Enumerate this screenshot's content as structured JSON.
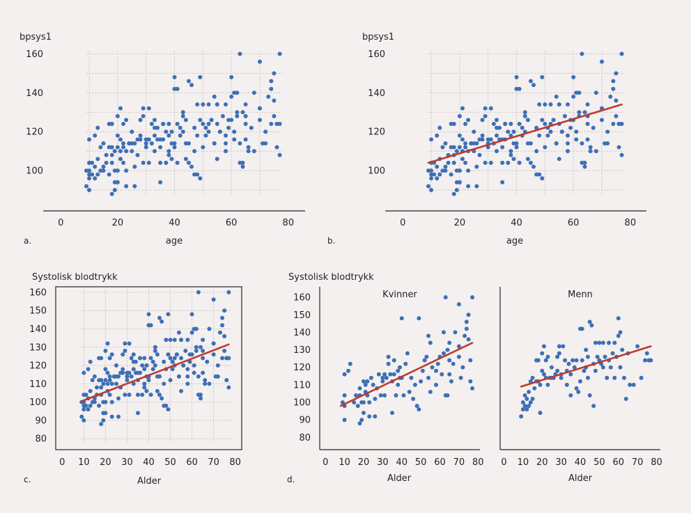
{
  "colors": {
    "background": "#f4f0ef",
    "point": "#3d6fb6",
    "line": "#c0392b",
    "grid": "#c8c4c4",
    "axis": "#222222"
  },
  "panels": {
    "a": {
      "letter": "a.",
      "ylabel": "bpsys1",
      "xlabel": "age"
    },
    "b": {
      "letter": "b.",
      "ylabel": "bpsys1",
      "xlabel": "age"
    },
    "c": {
      "letter": "c.",
      "ylabel": "Systolisk blodtrykk",
      "xlabel": "Alder"
    },
    "d": {
      "letter": "d.",
      "ylabel": "Systolisk blodtrykk",
      "xlabel": "Alder",
      "facet_women": "Kvinner",
      "facet_men": "Menn"
    }
  },
  "chart_data": [
    {
      "id": "a",
      "type": "scatter",
      "title": "",
      "xlabel": "age",
      "ylabel": "bpsys1",
      "xlim": [
        -3,
        82
      ],
      "ylim": [
        80,
        163
      ],
      "xticks": [
        0,
        20,
        40,
        60,
        80
      ],
      "yticks": [
        100,
        120,
        140,
        160
      ],
      "grid": true,
      "dataset": "all",
      "fit_line": null
    },
    {
      "id": "b",
      "type": "scatter",
      "title": "",
      "xlabel": "age",
      "ylabel": "bpsys1",
      "xlim": [
        -3,
        82
      ],
      "ylim": [
        80,
        163
      ],
      "xticks": [
        0,
        20,
        40,
        60,
        80
      ],
      "yticks": [
        100,
        120,
        140,
        160
      ],
      "grid": true,
      "dataset": "all",
      "fit_line": {
        "x": [
          9,
          77
        ],
        "y": [
          104,
          134
        ]
      }
    },
    {
      "id": "c",
      "type": "scatter",
      "title": "",
      "xlabel": "Alder",
      "ylabel": "Systolisk blodtrykk",
      "xlim": [
        -3,
        83
      ],
      "ylim": [
        74,
        163
      ],
      "xticks": [
        0,
        10,
        20,
        30,
        40,
        50,
        60,
        70,
        80
      ],
      "yticks": [
        80,
        90,
        100,
        110,
        120,
        130,
        140,
        150,
        160
      ],
      "grid": true,
      "dataset": "all",
      "fit_line": {
        "x": [
          9,
          77
        ],
        "y": [
          100.5,
          131.5
        ]
      }
    },
    {
      "id": "d-women",
      "type": "scatter",
      "title": "Kvinner",
      "xlabel": "Alder",
      "ylabel": "Systolisk blodtrykk",
      "xlim": [
        -3,
        81
      ],
      "ylim": [
        73,
        166
      ],
      "xticks": [
        0,
        10,
        20,
        30,
        40,
        50,
        60,
        70,
        80
      ],
      "yticks": [
        80,
        90,
        100,
        110,
        120,
        130,
        140,
        150,
        160
      ],
      "grid": false,
      "dataset": "women",
      "fit_line": {
        "x": [
          8,
          77
        ],
        "y": [
          98,
          134
        ]
      }
    },
    {
      "id": "d-men",
      "type": "scatter",
      "title": "Menn",
      "xlabel": "Alder",
      "ylabel": "",
      "xlim": [
        -2,
        82
      ],
      "ylim": [
        73,
        166
      ],
      "xticks": [
        0,
        10,
        20,
        30,
        40,
        50,
        60,
        70,
        80
      ],
      "yticks": [],
      "grid": false,
      "dataset": "men",
      "fit_line": {
        "x": [
          9,
          77
        ],
        "y": [
          109,
          132
        ]
      }
    }
  ],
  "points": {
    "women": [
      [
        9,
        100
      ],
      [
        10,
        90
      ],
      [
        10,
        98
      ],
      [
        10,
        104
      ],
      [
        10,
        116
      ],
      [
        12,
        118
      ],
      [
        13,
        122
      ],
      [
        15,
        100
      ],
      [
        16,
        104
      ],
      [
        17,
        98
      ],
      [
        18,
        88
      ],
      [
        18,
        104
      ],
      [
        18,
        108
      ],
      [
        19,
        90
      ],
      [
        19,
        100
      ],
      [
        20,
        112
      ],
      [
        20,
        100
      ],
      [
        20,
        94
      ],
      [
        21,
        106
      ],
      [
        21,
        110
      ],
      [
        22,
        104
      ],
      [
        22,
        112
      ],
      [
        23,
        100
      ],
      [
        23,
        92
      ],
      [
        24,
        114
      ],
      [
        25,
        110
      ],
      [
        26,
        92
      ],
      [
        26,
        102
      ],
      [
        27,
        108
      ],
      [
        28,
        116
      ],
      [
        29,
        104
      ],
      [
        30,
        114
      ],
      [
        30,
        112
      ],
      [
        31,
        104
      ],
      [
        31,
        116
      ],
      [
        32,
        114
      ],
      [
        33,
        122
      ],
      [
        33,
        126
      ],
      [
        34,
        116
      ],
      [
        35,
        94
      ],
      [
        35,
        112
      ],
      [
        36,
        116
      ],
      [
        36,
        124
      ],
      [
        37,
        104
      ],
      [
        38,
        110
      ],
      [
        38,
        118
      ],
      [
        39,
        120
      ],
      [
        39,
        114
      ],
      [
        40,
        148
      ],
      [
        40,
        114
      ],
      [
        41,
        104
      ],
      [
        42,
        122
      ],
      [
        43,
        128
      ],
      [
        44,
        106
      ],
      [
        45,
        114
      ],
      [
        46,
        102
      ],
      [
        47,
        110
      ],
      [
        48,
        98
      ],
      [
        49,
        148
      ],
      [
        49,
        96
      ],
      [
        50,
        112
      ],
      [
        51,
        118
      ],
      [
        52,
        124
      ],
      [
        53,
        126
      ],
      [
        54,
        138
      ],
      [
        54,
        114
      ],
      [
        55,
        106
      ],
      [
        55,
        134
      ],
      [
        56,
        120
      ],
      [
        58,
        110
      ],
      [
        58,
        118
      ],
      [
        59,
        122
      ],
      [
        60,
        126
      ],
      [
        61,
        116
      ],
      [
        62,
        128
      ],
      [
        62,
        140
      ],
      [
        63,
        104
      ],
      [
        63,
        160
      ],
      [
        64,
        104
      ],
      [
        64,
        130
      ],
      [
        65,
        116
      ],
      [
        65,
        124
      ],
      [
        65,
        134
      ],
      [
        66,
        112
      ],
      [
        67,
        122
      ],
      [
        68,
        140
      ],
      [
        70,
        132
      ],
      [
        70,
        126
      ],
      [
        70,
        156
      ],
      [
        71,
        114
      ],
      [
        72,
        120
      ],
      [
        73,
        138
      ],
      [
        74,
        142
      ],
      [
        74,
        146
      ],
      [
        75,
        150
      ],
      [
        75,
        136
      ],
      [
        76,
        124
      ],
      [
        76,
        112
      ],
      [
        77,
        108
      ],
      [
        77,
        160
      ]
    ],
    "men": [
      [
        9,
        92
      ],
      [
        10,
        96
      ],
      [
        10,
        100
      ],
      [
        11,
        104
      ],
      [
        11,
        98
      ],
      [
        12,
        96
      ],
      [
        12,
        102
      ],
      [
        13,
        106
      ],
      [
        13,
        98
      ],
      [
        14,
        112
      ],
      [
        14,
        100
      ],
      [
        15,
        102
      ],
      [
        15,
        114
      ],
      [
        16,
        108
      ],
      [
        17,
        112
      ],
      [
        17,
        124
      ],
      [
        18,
        124
      ],
      [
        18,
        112
      ],
      [
        19,
        94
      ],
      [
        19,
        110
      ],
      [
        20,
        128
      ],
      [
        20,
        118
      ],
      [
        21,
        116
      ],
      [
        21,
        132
      ],
      [
        22,
        124
      ],
      [
        22,
        114
      ],
      [
        23,
        110
      ],
      [
        23,
        126
      ],
      [
        24,
        114
      ],
      [
        25,
        114
      ],
      [
        25,
        120
      ],
      [
        26,
        114
      ],
      [
        27,
        116
      ],
      [
        28,
        118
      ],
      [
        28,
        126
      ],
      [
        29,
        132
      ],
      [
        29,
        128
      ],
      [
        30,
        114
      ],
      [
        30,
        116
      ],
      [
        31,
        132
      ],
      [
        32,
        124
      ],
      [
        33,
        110
      ],
      [
        33,
        118
      ],
      [
        34,
        122
      ],
      [
        35,
        116
      ],
      [
        35,
        104
      ],
      [
        36,
        124
      ],
      [
        37,
        120
      ],
      [
        38,
        108
      ],
      [
        38,
        124
      ],
      [
        39,
        106
      ],
      [
        40,
        112
      ],
      [
        40,
        142
      ],
      [
        41,
        142
      ],
      [
        41,
        124
      ],
      [
        42,
        118
      ],
      [
        43,
        120
      ],
      [
        43,
        130
      ],
      [
        44,
        114
      ],
      [
        44,
        126
      ],
      [
        45,
        146
      ],
      [
        45,
        104
      ],
      [
        46,
        144
      ],
      [
        47,
        98
      ],
      [
        47,
        122
      ],
      [
        48,
        134
      ],
      [
        48,
        118
      ],
      [
        49,
        126
      ],
      [
        50,
        134
      ],
      [
        50,
        124
      ],
      [
        51,
        122
      ],
      [
        52,
        120
      ],
      [
        52,
        134
      ],
      [
        53,
        126
      ],
      [
        54,
        114
      ],
      [
        55,
        134
      ],
      [
        55,
        124
      ],
      [
        56,
        120
      ],
      [
        57,
        128
      ],
      [
        58,
        114
      ],
      [
        58,
        134
      ],
      [
        59,
        126
      ],
      [
        60,
        148
      ],
      [
        60,
        138
      ],
      [
        61,
        140
      ],
      [
        61,
        120
      ],
      [
        62,
        130
      ],
      [
        63,
        114
      ],
      [
        64,
        102
      ],
      [
        65,
        128
      ],
      [
        66,
        110
      ],
      [
        68,
        110
      ],
      [
        70,
        132
      ],
      [
        72,
        114
      ],
      [
        74,
        124
      ],
      [
        75,
        128
      ],
      [
        76,
        124
      ],
      [
        77,
        124
      ]
    ]
  }
}
